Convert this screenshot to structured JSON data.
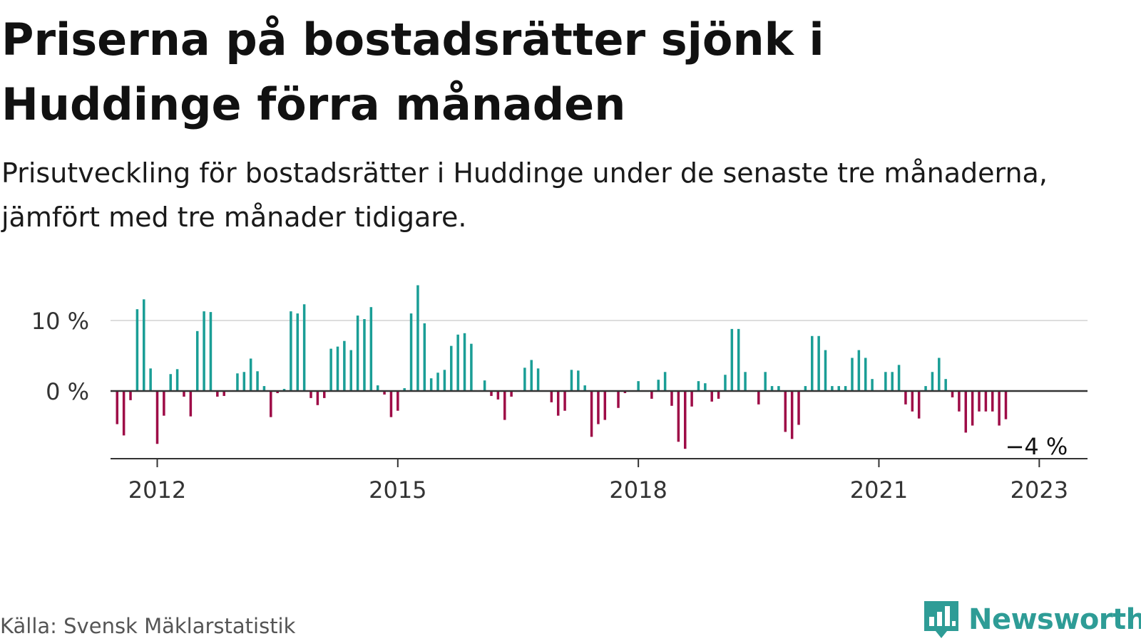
{
  "title": "Priserna på bostadsrätter sjönk i Huddinge förra månaden",
  "subtitle": "Prisutveckling för bostadsrätter i Huddinge under de senaste tre månaderna, jämfört med tre månader tidigare.",
  "source": "Källa: Svensk Mäklarstatistik",
  "logo": {
    "text": "Newsworthy",
    "icon": "bar-chart-speech-icon",
    "color": "#2e9c96"
  },
  "colors": {
    "positive": "#1a9e96",
    "negative": "#9e0c47",
    "axis": "#333333",
    "grid": "#dddddd"
  },
  "chart_data": {
    "type": "bar",
    "x_start": "2011-07",
    "x_step": "month",
    "y_unit": "%",
    "ylim": [
      -9,
      14
    ],
    "yticks": [
      {
        "value": 0,
        "label": "0 %"
      },
      {
        "value": 10,
        "label": "10 %"
      }
    ],
    "xticks": [
      {
        "date": "2012-01",
        "label": "2012"
      },
      {
        "date": "2015-01",
        "label": "2015"
      },
      {
        "date": "2018-01",
        "label": "2018"
      },
      {
        "date": "2021-01",
        "label": "2021"
      },
      {
        "date": "2023-01",
        "label": "2023"
      }
    ],
    "annotation": {
      "date": "2023-01",
      "value": -4,
      "label": "−4 %"
    },
    "values": [
      -4.7,
      -6.3,
      -1.3,
      11.6,
      13.0,
      3.2,
      -7.5,
      -3.5,
      2.4,
      3.1,
      -0.8,
      -3.6,
      8.5,
      11.3,
      11.2,
      -0.8,
      -0.7,
      0,
      2.5,
      2.7,
      4.6,
      2.8,
      0.7,
      -3.7,
      -0.3,
      0.3,
      11.3,
      11.0,
      12.3,
      -1.0,
      -2.0,
      -1.0,
      6.0,
      6.3,
      7.1,
      5.8,
      10.7,
      10.2,
      11.9,
      0.8,
      -0.5,
      -3.7,
      -2.8,
      0.4,
      11.0,
      15.0,
      9.6,
      1.8,
      2.6,
      3.0,
      6.4,
      8.0,
      8.2,
      6.7,
      0,
      1.5,
      -0.7,
      -1.2,
      -4.1,
      -0.8,
      0,
      3.3,
      4.4,
      3.2,
      0,
      -1.6,
      -3.5,
      -2.8,
      3.0,
      2.9,
      0.8,
      -6.5,
      -4.7,
      -4.1,
      0,
      -2.4,
      -0.3,
      0,
      1.4,
      0,
      -1.1,
      1.6,
      2.7,
      -2.1,
      -7.2,
      -8.2,
      -2.2,
      1.4,
      1.1,
      -1.5,
      -1.1,
      2.3,
      8.8,
      8.8,
      2.7,
      0,
      -1.9,
      2.7,
      0.7,
      0.7,
      -5.8,
      -6.8,
      -4.8,
      0.7,
      7.8,
      7.8,
      5.8,
      0.7,
      0.7,
      0.7,
      4.7,
      5.8,
      4.7,
      1.7,
      0,
      2.7,
      2.7,
      3.7,
      -1.9,
      -2.9,
      -3.9,
      0.7,
      2.7,
      4.7,
      1.7,
      -0.9,
      -2.9,
      -5.9,
      -4.9,
      -2.9,
      -2.9,
      -2.9,
      -4.9,
      -4.0
    ]
  }
}
